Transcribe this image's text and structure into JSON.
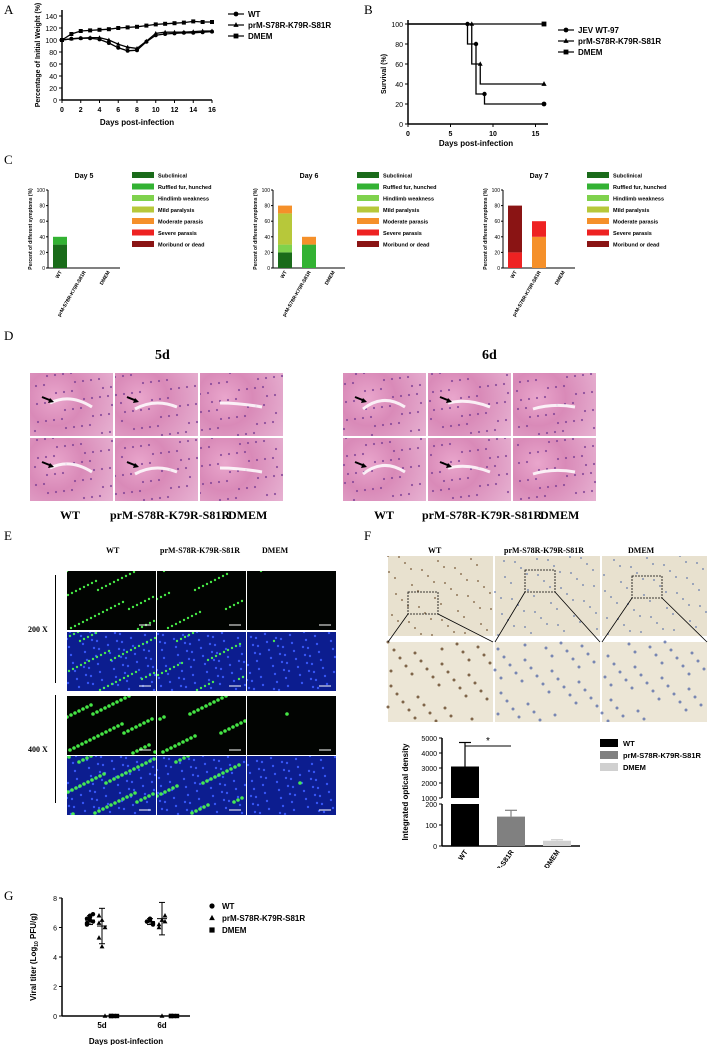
{
  "panel_labels": [
    "A",
    "B",
    "C",
    "D",
    "E",
    "F",
    "G"
  ],
  "chart_data": [
    {
      "id": "A",
      "type": "line",
      "xlabel": "Days post-infection",
      "ylabel": "Percentage of Initial Weight (%)",
      "xlim": [
        0,
        16
      ],
      "ylim": [
        0,
        150
      ],
      "xticks": [
        0,
        2,
        4,
        6,
        8,
        10,
        12,
        14,
        16
      ],
      "yticks": [
        0,
        20,
        40,
        60,
        80,
        100,
        120,
        140
      ],
      "legend_position": "right",
      "series": [
        {
          "name": "WT",
          "marker": "circle",
          "x": [
            0,
            1,
            2,
            3,
            4,
            5,
            6,
            7,
            8,
            9,
            10,
            11,
            12,
            13,
            14,
            15,
            16
          ],
          "y": [
            100,
            102,
            103,
            103,
            101,
            95,
            87,
            82,
            83,
            97,
            108,
            110,
            111,
            112,
            112,
            113,
            114
          ]
        },
        {
          "name": "prM-S78R-K79R-S81R",
          "marker": "triangle",
          "x": [
            0,
            1,
            2,
            3,
            4,
            5,
            6,
            7,
            8,
            9,
            10,
            11,
            12,
            13,
            14,
            15,
            16
          ],
          "y": [
            100,
            102,
            103,
            104,
            104,
            100,
            93,
            88,
            86,
            98,
            111,
            113,
            113,
            113,
            114,
            115,
            115
          ]
        },
        {
          "name": "DMEM",
          "marker": "square",
          "x": [
            0,
            1,
            2,
            3,
            4,
            5,
            6,
            7,
            8,
            9,
            10,
            11,
            12,
            13,
            14,
            15,
            16
          ],
          "y": [
            100,
            110,
            115,
            116,
            117,
            118,
            120,
            121,
            122,
            124,
            126,
            127,
            128,
            129,
            131,
            130,
            130
          ]
        }
      ]
    },
    {
      "id": "B",
      "type": "line",
      "xlabel": "Days post-infection",
      "ylabel": "Survival (%)",
      "xlim": [
        0,
        16
      ],
      "ylim": [
        0,
        100
      ],
      "xticks": [
        0,
        5,
        10,
        15
      ],
      "yticks": [
        0,
        20,
        40,
        60,
        80,
        100
      ],
      "legend_position": "right",
      "series": [
        {
          "name": "JEV WT-97",
          "marker": "circle",
          "x": [
            0,
            7,
            7,
            8,
            8,
            9,
            9,
            16
          ],
          "y": [
            100,
            100,
            80,
            80,
            30,
            30,
            20,
            20
          ]
        },
        {
          "name": "prM-S78R-K79R-S81R",
          "marker": "triangle",
          "x": [
            0,
            7.5,
            7.5,
            8.5,
            8.5,
            16
          ],
          "y": [
            100,
            100,
            60,
            60,
            40,
            40
          ]
        },
        {
          "name": "DMEM",
          "marker": "square",
          "x": [
            0,
            16
          ],
          "y": [
            100,
            100
          ]
        }
      ]
    },
    {
      "id": "C-day5",
      "type": "bar",
      "title": "Day 5",
      "ylabel": "Percent of different symptoms (%)",
      "ylim": [
        0,
        100
      ],
      "yticks": [
        0,
        20,
        40,
        60,
        80,
        100
      ],
      "categories": [
        "WT",
        "prM-S78R-K79R-S81R",
        "DMEM"
      ],
      "legend_position": "right",
      "series": [
        {
          "name": "Subclinical",
          "color": "#1a6b1a",
          "values": [
            30,
            0,
            0
          ]
        },
        {
          "name": "Ruffled fur, hunched",
          "color": "#33b233",
          "values": [
            10,
            0,
            0
          ]
        },
        {
          "name": "Hindlimb weakness",
          "color": "#7fd24d",
          "values": [
            0,
            0,
            0
          ]
        },
        {
          "name": "Mild paralysis",
          "color": "#b7c83a",
          "values": [
            0,
            0,
            0
          ]
        },
        {
          "name": "Moderate parasis",
          "color": "#f5902a",
          "values": [
            0,
            0,
            0
          ]
        },
        {
          "name": "Severe parasis",
          "color": "#ee2222",
          "values": [
            0,
            0,
            0
          ]
        },
        {
          "name": "Moribund or dead",
          "color": "#8a1414",
          "values": [
            0,
            0,
            0
          ]
        }
      ]
    },
    {
      "id": "C-day6",
      "type": "bar",
      "title": "Day 6",
      "ylabel": "Percent of different symptoms (%)",
      "ylim": [
        0,
        100
      ],
      "yticks": [
        0,
        20,
        40,
        60,
        80,
        100
      ],
      "categories": [
        "WT",
        "prM-S78R-K79R-S81R",
        "DMEM"
      ],
      "legend_position": "right",
      "series": [
        {
          "name": "Subclinical",
          "color": "#1a6b1a",
          "values": [
            20,
            0,
            0
          ]
        },
        {
          "name": "Ruffled fur, hunched",
          "color": "#33b233",
          "values": [
            0,
            30,
            0
          ]
        },
        {
          "name": "Hindlimb weakness",
          "color": "#7fd24d",
          "values": [
            10,
            0,
            0
          ]
        },
        {
          "name": "Mild paralysis",
          "color": "#b7c83a",
          "values": [
            40,
            0,
            0
          ]
        },
        {
          "name": "Moderate parasis",
          "color": "#f5902a",
          "values": [
            10,
            10,
            0
          ]
        },
        {
          "name": "Severe parasis",
          "color": "#ee2222",
          "values": [
            0,
            0,
            0
          ]
        },
        {
          "name": "Moribund or dead",
          "color": "#8a1414",
          "values": [
            0,
            0,
            0
          ]
        }
      ]
    },
    {
      "id": "C-day7",
      "type": "bar",
      "title": "Day 7",
      "ylabel": "Percent of different symptoms (%)",
      "ylim": [
        0,
        100
      ],
      "yticks": [
        0,
        20,
        40,
        60,
        80,
        100
      ],
      "categories": [
        "WT",
        "prM-S78R-K79R-S81R",
        "DMEM"
      ],
      "legend_position": "right",
      "series": [
        {
          "name": "Subclinical",
          "color": "#1a6b1a",
          "values": [
            0,
            0,
            0
          ]
        },
        {
          "name": "Ruffled fur, hunched",
          "color": "#33b233",
          "values": [
            0,
            0,
            0
          ]
        },
        {
          "name": "Hindlimb weakness",
          "color": "#7fd24d",
          "values": [
            0,
            0,
            0
          ]
        },
        {
          "name": "Mild paralysis",
          "color": "#b7c83a",
          "values": [
            0,
            0,
            0
          ]
        },
        {
          "name": "Moderate parasis",
          "color": "#f5902a",
          "values": [
            0,
            40,
            0
          ]
        },
        {
          "name": "Severe parasis",
          "color": "#ee2222",
          "values": [
            20,
            20,
            0
          ]
        },
        {
          "name": "Moribund or dead",
          "color": "#8a1414",
          "values": [
            60,
            0,
            0
          ]
        }
      ]
    },
    {
      "id": "F-bar",
      "type": "bar",
      "ylabel": "Integrated optical density",
      "yticks_lower": [
        0,
        100,
        200
      ],
      "yticks_upper": [
        1000,
        2000,
        3000,
        4000,
        5000
      ],
      "axis_break": [
        200,
        1000
      ],
      "categories": [
        "WT",
        "prM-S78R-K79R-S81R",
        "DMEM"
      ],
      "values": [
        3100,
        140,
        25
      ],
      "errors": [
        1600,
        30,
        5
      ],
      "colors": [
        "#000000",
        "#808080",
        "#d0d0d0"
      ],
      "legend": [
        "WT",
        "prM-S78R-K79R-S81R",
        "DMEM"
      ],
      "legend_position": "right",
      "significance": "*"
    },
    {
      "id": "G",
      "type": "scatter",
      "xlabel": "Days post-infection",
      "ylabel_pre": "Viral titer (Log",
      "ylabel_sub": "10",
      "ylabel_post": " PFU/g)",
      "ylim": [
        0,
        8
      ],
      "yticks": [
        0,
        2,
        4,
        6,
        8
      ],
      "categories": [
        "5d",
        "6d"
      ],
      "legend_position": "right",
      "series": [
        {
          "name": "WT",
          "marker": "circle",
          "values": [
            [
              6.6,
              6.8,
              6.4,
              6.2,
              6.5,
              6.9,
              6.3,
              6.7
            ],
            [
              6.4,
              6.5,
              6.3,
              6.4,
              6.6,
              6.2
            ]
          ]
        },
        {
          "name": "prM-S78R-K79R-S81R",
          "marker": "triangle",
          "values": [
            [
              6.8,
              6.5,
              6.0,
              5.3,
              4.7,
              0,
              6.3
            ],
            [
              6.2,
              6.5,
              6.8,
              6.0,
              0,
              6.4
            ]
          ]
        },
        {
          "name": "DMEM",
          "marker": "square",
          "values": [
            [
              0,
              0,
              0,
              0
            ],
            [
              0,
              0,
              0,
              0
            ]
          ]
        }
      ],
      "means": [
        [
          6.5,
          6.1
        ],
        [
          6.4,
          6.6
        ]
      ],
      "sd": [
        [
          0.3,
          1.2
        ],
        [
          0.2,
          1.1
        ]
      ]
    }
  ],
  "panelD": {
    "left_title": "5d",
    "right_title": "6d",
    "labels": [
      "WT",
      "prM-S78R-K79R-S81R",
      "DMEM"
    ]
  },
  "panelE": {
    "cols": [
      "WT",
      "prM-S78R-K79R-S81R",
      "DMEM"
    ],
    "rows": [
      "200 X",
      "400 X"
    ]
  },
  "panelF": {
    "cols": [
      "WT",
      "prM-S78R-K79R-S81R",
      "DMEM"
    ]
  }
}
